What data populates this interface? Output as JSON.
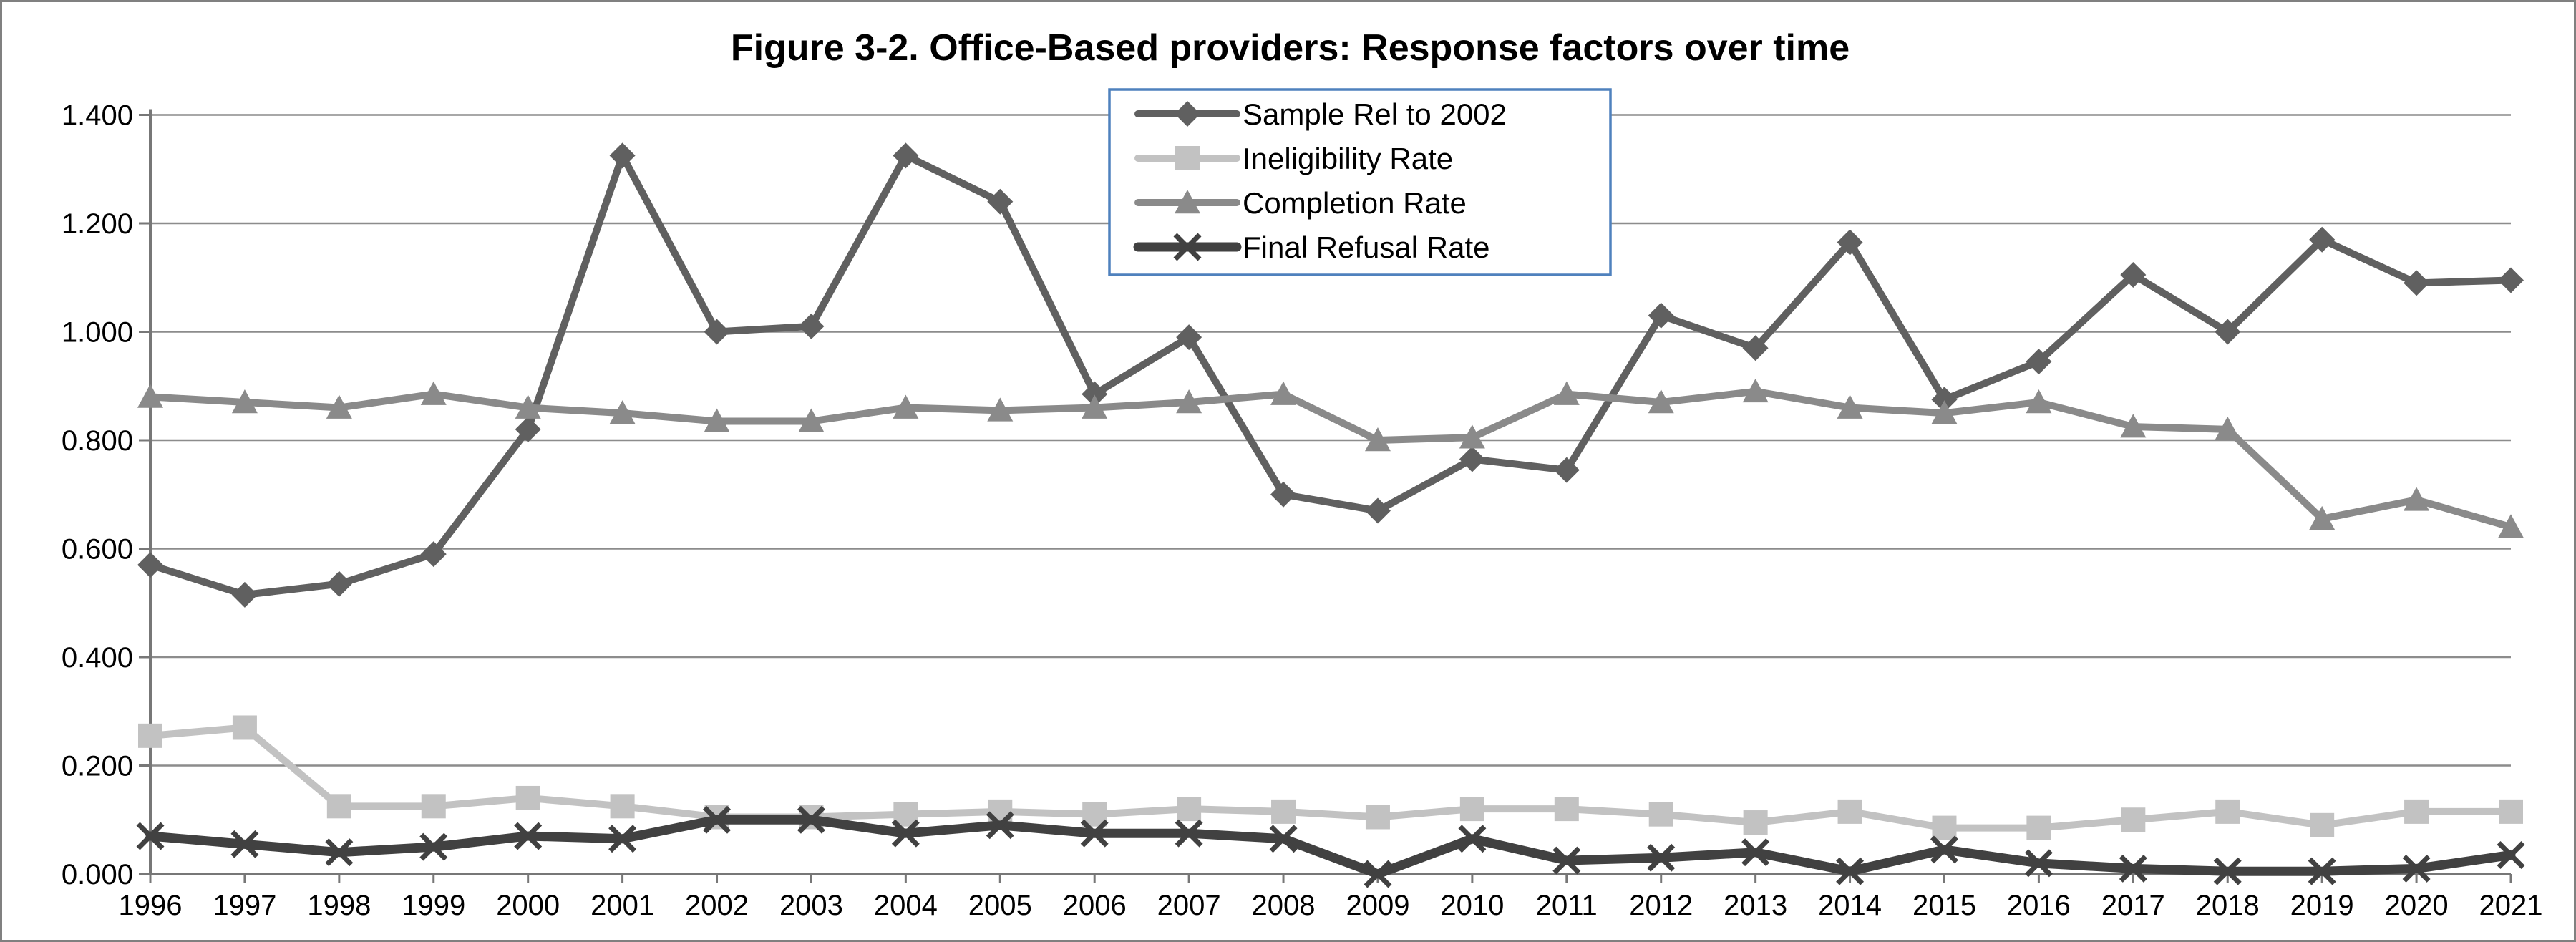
{
  "figure": {
    "background_color": "#FFFFFF",
    "border_color": "#808080"
  },
  "chart_data": {
    "type": "line",
    "title": "Figure 3-2. Office-Based providers: Response factors over time",
    "xlabel": "",
    "ylabel": "",
    "ylim": [
      0.0,
      1.4
    ],
    "y_tick_step": 0.2,
    "grid": true,
    "gridline_color": "#8C8C8C",
    "axis_color": "#777777",
    "tick_label_color": "#000000",
    "legend_position": "top-center",
    "legend_border_color": "#4F81BD",
    "legend_background": "#FFFFFF",
    "y_ticks": [
      {
        "value": 0.0,
        "label": "0.000"
      },
      {
        "value": 0.2,
        "label": "0.200"
      },
      {
        "value": 0.4,
        "label": "0.400"
      },
      {
        "value": 0.6,
        "label": "0.600"
      },
      {
        "value": 0.8,
        "label": "0.800"
      },
      {
        "value": 1.0,
        "label": "1.000"
      },
      {
        "value": 1.2,
        "label": "1.200"
      },
      {
        "value": 1.4,
        "label": "1.400"
      }
    ],
    "categories": [
      "1996",
      "1997",
      "1998",
      "1999",
      "2000",
      "2001",
      "2002",
      "2003",
      "2004",
      "2005",
      "2006",
      "2007",
      "2008",
      "2009",
      "2010",
      "2011",
      "2012",
      "2013",
      "2014",
      "2015",
      "2016",
      "2017",
      "2018",
      "2019",
      "2020",
      "2021"
    ],
    "series": [
      {
        "name": "Sample Rel to 2002",
        "marker": "diamond",
        "color": "#606060",
        "line_width": 10,
        "values": [
          0.57,
          0.515,
          0.535,
          0.59,
          0.82,
          1.325,
          1.0,
          1.01,
          1.325,
          1.24,
          0.885,
          0.99,
          0.7,
          0.67,
          0.765,
          0.745,
          1.03,
          0.97,
          1.165,
          0.875,
          0.945,
          1.105,
          1.0,
          1.17,
          1.09,
          1.095
        ]
      },
      {
        "name": "Ineligibility Rate",
        "marker": "square",
        "color": "#C2C2C2",
        "line_width": 10,
        "values": [
          0.255,
          0.27,
          0.125,
          0.125,
          0.14,
          0.125,
          0.105,
          0.105,
          0.11,
          0.115,
          0.11,
          0.12,
          0.115,
          0.105,
          0.12,
          0.12,
          0.11,
          0.095,
          0.115,
          0.085,
          0.085,
          0.1,
          0.115,
          0.09,
          0.115,
          0.115
        ]
      },
      {
        "name": "Completion Rate",
        "marker": "triangle",
        "color": "#8A8A8A",
        "line_width": 10,
        "values": [
          0.88,
          0.87,
          0.86,
          0.885,
          0.86,
          0.85,
          0.835,
          0.835,
          0.86,
          0.855,
          0.86,
          0.87,
          0.885,
          0.8,
          0.805,
          0.885,
          0.87,
          0.89,
          0.86,
          0.85,
          0.87,
          0.825,
          0.82,
          0.655,
          0.69,
          0.64
        ]
      },
      {
        "name": "Final Refusal Rate",
        "marker": "x",
        "color": "#414141",
        "line_width": 13,
        "values": [
          0.07,
          0.055,
          0.04,
          0.05,
          0.07,
          0.065,
          0.1,
          0.1,
          0.075,
          0.09,
          0.075,
          0.075,
          0.065,
          0.0,
          0.065,
          0.025,
          0.03,
          0.04,
          0.005,
          0.045,
          0.02,
          0.01,
          0.005,
          0.005,
          0.01,
          0.035
        ]
      }
    ]
  }
}
